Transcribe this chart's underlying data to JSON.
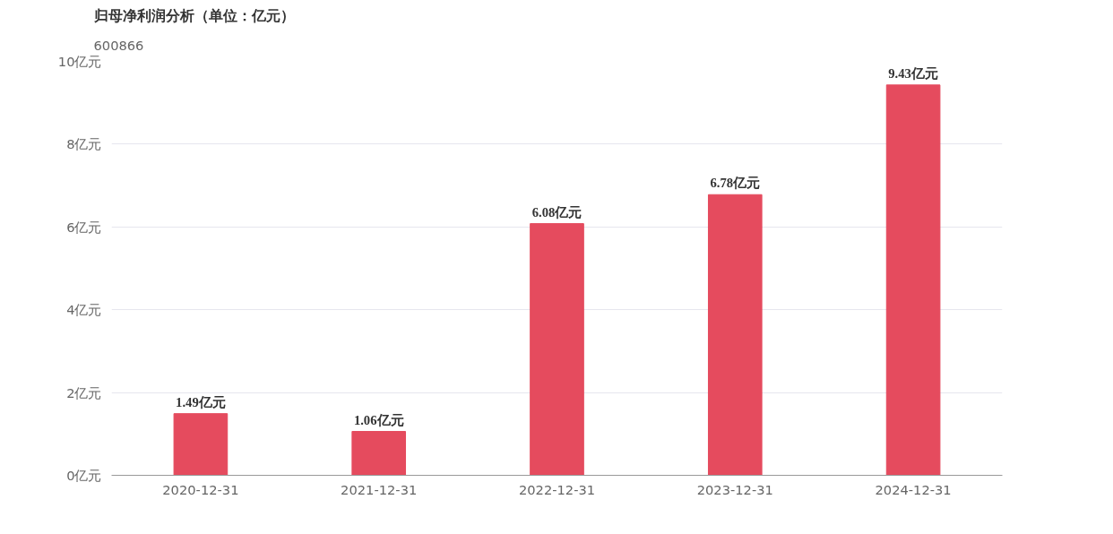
{
  "chart_data": {
    "type": "bar",
    "title": "归母净利润分析（单位：亿元）",
    "subtitle": "600866",
    "categories": [
      "2020-12-31",
      "2021-12-31",
      "2022-12-31",
      "2023-12-31",
      "2024-12-31"
    ],
    "values": [
      1.49,
      1.06,
      6.08,
      6.78,
      9.43
    ],
    "value_labels": [
      "1.49亿元",
      "1.06亿元",
      "6.08亿元",
      "6.78亿元",
      "9.43亿元"
    ],
    "color": "#e54b5e",
    "ylim": [
      0,
      10
    ],
    "yticks": [
      {
        "value": 0,
        "label": "0亿元"
      },
      {
        "value": 2,
        "label": "2亿元"
      },
      {
        "value": 4,
        "label": "4亿元"
      },
      {
        "value": 6,
        "label": "6亿元"
      },
      {
        "value": 8,
        "label": "8亿元"
      },
      {
        "value": 10,
        "label": "10亿元"
      }
    ],
    "grid": "y"
  }
}
